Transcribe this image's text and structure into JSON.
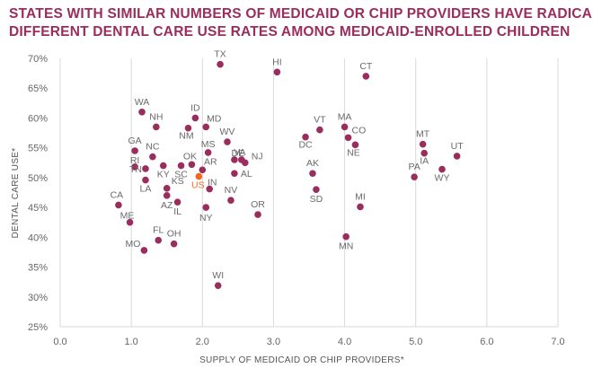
{
  "title_lines": [
    "STATES WITH SIMILAR NUMBERS OF MEDICAID OR CHIP PROVIDERS HAVE RADICALLY",
    "DIFFERENT DENTAL CARE USE RATES AMONG MEDICAID-ENROLLED CHILDREN"
  ],
  "chart_data": {
    "type": "scatter",
    "title": "STATES WITH SIMILAR NUMBERS OF MEDICAID OR CHIP PROVIDERS HAVE RADICALLY DIFFERENT DENTAL CARE USE RATES AMONG MEDICAID-ENROLLED CHILDREN",
    "xlabel": "SUPPLY OF MEDICAID OR CHIP PROVIDERS*",
    "ylabel": "DENTAL CARE USE*",
    "xlim": [
      0,
      7
    ],
    "ylim": [
      25,
      70
    ],
    "x_ticks": [
      "0.0",
      "1.0",
      "2.0",
      "3.0",
      "4.0",
      "5.0",
      "6.0",
      "7.0"
    ],
    "y_ticks": [
      "25%",
      "30%",
      "35%",
      "40%",
      "45%",
      "50%",
      "55%",
      "60%",
      "65%",
      "70%"
    ],
    "grid": "vertical",
    "point_color": "#9b2c5e",
    "highlight_color": "#ee6a21",
    "points": [
      {
        "label": "TX",
        "x": 2.25,
        "y": 69
      },
      {
        "label": "HI",
        "x": 3.05,
        "y": 67.7
      },
      {
        "label": "CT",
        "x": 4.3,
        "y": 67
      },
      {
        "label": "WA",
        "x": 1.15,
        "y": 61
      },
      {
        "label": "NH",
        "x": 1.35,
        "y": 58.5
      },
      {
        "label": "ID",
        "x": 1.9,
        "y": 60
      },
      {
        "label": "MD",
        "x": 2.05,
        "y": 58.5
      },
      {
        "label": "NM",
        "x": 1.8,
        "y": 58.3
      },
      {
        "label": "MA",
        "x": 4.0,
        "y": 58.5
      },
      {
        "label": "VT",
        "x": 3.65,
        "y": 58
      },
      {
        "label": "DC",
        "x": 3.45,
        "y": 56.8
      },
      {
        "label": "CO",
        "x": 4.05,
        "y": 56.7
      },
      {
        "label": "NE",
        "x": 4.15,
        "y": 55.5
      },
      {
        "label": "MT",
        "x": 5.1,
        "y": 55.6
      },
      {
        "label": "UT",
        "x": 5.58,
        "y": 53.6
      },
      {
        "label": "IA",
        "x": 5.12,
        "y": 54.1
      },
      {
        "label": "PA",
        "x": 4.98,
        "y": 50.1
      },
      {
        "label": "WY",
        "x": 5.37,
        "y": 51.4
      },
      {
        "label": "GA",
        "x": 1.05,
        "y": 54.5
      },
      {
        "label": "NC",
        "x": 1.3,
        "y": 53.5
      },
      {
        "label": "RI",
        "x": 1.05,
        "y": 51.8
      },
      {
        "label": "TN",
        "x": 1.2,
        "y": 51.5
      },
      {
        "label": "LA",
        "x": 1.2,
        "y": 49.6
      },
      {
        "label": "KY",
        "x": 1.45,
        "y": 52
      },
      {
        "label": "SC",
        "x": 1.7,
        "y": 52
      },
      {
        "label": "OK",
        "x": 1.85,
        "y": 52.2
      },
      {
        "label": "AR",
        "x": 2.0,
        "y": 51.3
      },
      {
        "label": "MS",
        "x": 2.08,
        "y": 54.2
      },
      {
        "label": "WV",
        "x": 2.35,
        "y": 56
      },
      {
        "label": "VA",
        "x": 2.45,
        "y": 53
      },
      {
        "label": "NJ",
        "x": 2.6,
        "y": 52.5
      },
      {
        "label": "DE",
        "x": 2.55,
        "y": 53
      },
      {
        "label": "AL",
        "x": 2.45,
        "y": 50.7
      },
      {
        "label": "AK",
        "x": 3.55,
        "y": 50.7
      },
      {
        "label": "SD",
        "x": 3.6,
        "y": 48
      },
      {
        "label": "US",
        "x": 1.95,
        "y": 50.2,
        "highlight": true
      },
      {
        "label": "IN",
        "x": 2.1,
        "y": 48.1
      },
      {
        "label": "KS",
        "x": 1.5,
        "y": 48.2
      },
      {
        "label": "AZ",
        "x": 1.5,
        "y": 47
      },
      {
        "label": "IL",
        "x": 1.65,
        "y": 45.9
      },
      {
        "label": "NV",
        "x": 2.4,
        "y": 46.2
      },
      {
        "label": "OR",
        "x": 2.78,
        "y": 43.8
      },
      {
        "label": "NY",
        "x": 2.05,
        "y": 45
      },
      {
        "label": "MI",
        "x": 4.22,
        "y": 45.1
      },
      {
        "label": "CA",
        "x": 0.82,
        "y": 45.4
      },
      {
        "label": "ME",
        "x": 0.98,
        "y": 42.5
      },
      {
        "label": "MN",
        "x": 4.02,
        "y": 40.1
      },
      {
        "label": "FL",
        "x": 1.38,
        "y": 39.5
      },
      {
        "label": "OH",
        "x": 1.6,
        "y": 38.9
      },
      {
        "label": "MO",
        "x": 1.18,
        "y": 37.8
      },
      {
        "label": "WI",
        "x": 2.22,
        "y": 31.9
      }
    ]
  }
}
